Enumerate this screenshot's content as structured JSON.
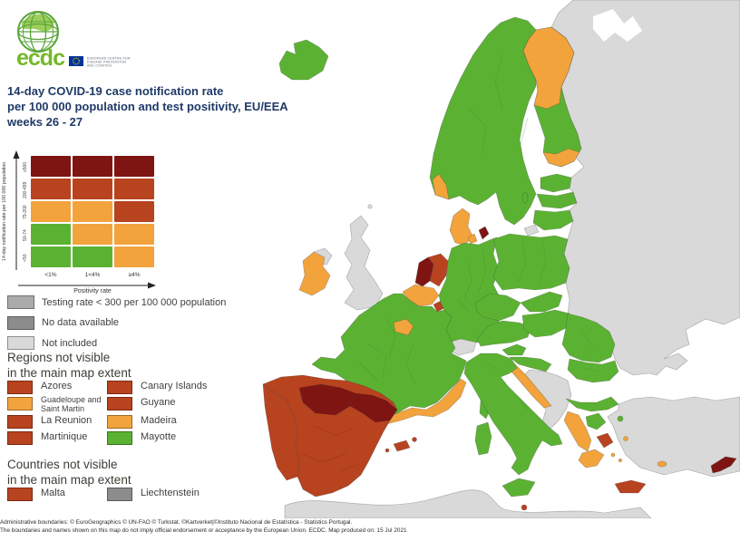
{
  "logo": {
    "ecdc_text": "ecdc",
    "org_line1": "EUROPEAN CENTRE FOR",
    "org_line2": "DISEASE PREVENTION",
    "org_line3": "AND CONTROL"
  },
  "title": {
    "line1": "14-day COVID-19 case notification rate",
    "line2": "per 100 000 population and test positivity, EU/EEA",
    "line3": "weeks 26 - 27"
  },
  "matrix": {
    "y_axis_label": "14-day notification rate per 100 000 population",
    "x_axis_label": "Positivity rate",
    "row_labels": [
      "≥500",
      "200-499",
      "75-200",
      "50-74",
      "<50"
    ],
    "col_labels": [
      "<1%",
      "1<4%",
      "≥4%"
    ],
    "cells": [
      [
        "darkred",
        "darkred",
        "darkred"
      ],
      [
        "red",
        "red",
        "red"
      ],
      [
        "orange",
        "orange",
        "red"
      ],
      [
        "green",
        "orange",
        "orange"
      ],
      [
        "green",
        "green",
        "orange"
      ]
    ]
  },
  "status_legend": [
    {
      "label": "Testing rate < 300 per 100 000 population",
      "color_key": "testing_low"
    },
    {
      "label": "No data available",
      "color_key": "no_data"
    },
    {
      "label": "Not included",
      "color_key": "not_included"
    }
  ],
  "regions_section": {
    "heading_line1": "Regions not visible",
    "heading_line2": "in the main map extent",
    "items": [
      {
        "label": "Azores",
        "color_key": "red"
      },
      {
        "label": "Canary Islands",
        "color_key": "red"
      },
      {
        "label": "Guadeloupe and Saint Martin",
        "color_key": "orange"
      },
      {
        "label": "Guyane",
        "color_key": "red"
      },
      {
        "label": "La Reunion",
        "color_key": "red"
      },
      {
        "label": "Madeira",
        "color_key": "orange"
      },
      {
        "label": "Martinique",
        "color_key": "red"
      },
      {
        "label": "Mayotte",
        "color_key": "green"
      }
    ]
  },
  "countries_section": {
    "heading_line1": "Countries not visible",
    "heading_line2": "in the main map extent",
    "items": [
      {
        "label": "Malta",
        "color_key": "red"
      },
      {
        "label": "Liechtenstein",
        "color_key": "no_data"
      }
    ]
  },
  "footer": {
    "line1": "Administrative boundaries: © EuroGeographics © UN-FAO © Turkstat. ©Kartverket|©Instituto Nacional de Estatística - Statistics Portugal.",
    "line2": "The boundaries and names shown on this map do not imply official endorsement or acceptance by the European Union. ECDC. Map produced on: 15 Jul 2021"
  },
  "colors": {
    "green": "#5BB232",
    "orange": "#F2A33C",
    "red": "#B8431F",
    "darkred": "#7E1512",
    "not_included": "#D9D9D9",
    "testing_low": "#ABABAB",
    "no_data": "#8C8C8C",
    "sea": "#FFFFFF",
    "title": "#1F3A68",
    "logo_green": "#76B82A",
    "eu_blue": "#003399"
  },
  "map": {
    "regions": [
      {
        "id": "russia-belarus-ukraine",
        "status": "not_included"
      },
      {
        "id": "turkey",
        "status": "not_included"
      },
      {
        "id": "north-africa",
        "status": "not_included"
      },
      {
        "id": "western-balkans",
        "status": "not_included"
      },
      {
        "id": "uk",
        "status": "not_included"
      },
      {
        "id": "northern-ireland",
        "status": "not_included"
      },
      {
        "id": "switzerland",
        "status": "not_included"
      },
      {
        "id": "kaliningrad",
        "status": "not_included"
      },
      {
        "id": "white-sea",
        "status": "sea"
      },
      {
        "id": "iceland",
        "status": "green"
      },
      {
        "id": "scandinavia",
        "status": "green"
      },
      {
        "id": "norway-southwest",
        "status": "orange"
      },
      {
        "id": "finland",
        "status": "green"
      },
      {
        "id": "finland-lapland",
        "status": "orange"
      },
      {
        "id": "finland-south-coast",
        "status": "orange"
      },
      {
        "id": "estonia",
        "status": "green"
      },
      {
        "id": "latvia",
        "status": "green"
      },
      {
        "id": "lithuania",
        "status": "green"
      },
      {
        "id": "gotland",
        "status": "green"
      },
      {
        "id": "denmark",
        "status": "orange"
      },
      {
        "id": "copenhagen",
        "status": "darkred"
      },
      {
        "id": "ireland",
        "status": "orange"
      },
      {
        "id": "netherlands",
        "status": "red"
      },
      {
        "id": "netherlands-coast",
        "status": "darkred"
      },
      {
        "id": "belgium",
        "status": "orange"
      },
      {
        "id": "luxembourg",
        "status": "red"
      },
      {
        "id": "germany",
        "status": "green"
      },
      {
        "id": "poland",
        "status": "green"
      },
      {
        "id": "czechia",
        "status": "green"
      },
      {
        "id": "austria",
        "status": "green"
      },
      {
        "id": "slovakia",
        "status": "green"
      },
      {
        "id": "hungary",
        "status": "green"
      },
      {
        "id": "slovenia",
        "status": "green"
      },
      {
        "id": "france",
        "status": "green"
      },
      {
        "id": "paris-region",
        "status": "orange"
      },
      {
        "id": "france-south",
        "status": "orange"
      },
      {
        "id": "corsica",
        "status": "green"
      },
      {
        "id": "portugal",
        "status": "red"
      },
      {
        "id": "spain",
        "status": "red"
      },
      {
        "id": "spain-north-central",
        "status": "darkred"
      },
      {
        "id": "spain-northeast",
        "status": "darkred"
      },
      {
        "id": "balearic-islands",
        "status": "red"
      },
      {
        "id": "italy",
        "status": "green"
      },
      {
        "id": "sicily",
        "status": "green"
      },
      {
        "id": "sardinia",
        "status": "green"
      },
      {
        "id": "malta",
        "status": "red"
      },
      {
        "id": "croatia-inland",
        "status": "green"
      },
      {
        "id": "croatia-coast",
        "status": "orange"
      },
      {
        "id": "romania",
        "status": "green"
      },
      {
        "id": "bulgaria",
        "status": "green"
      },
      {
        "id": "greece-north",
        "status": "green"
      },
      {
        "id": "greece-west",
        "status": "orange"
      },
      {
        "id": "thessaly",
        "status": "green"
      },
      {
        "id": "attica",
        "status": "red"
      },
      {
        "id": "peloponnese",
        "status": "orange"
      },
      {
        "id": "crete",
        "status": "red"
      },
      {
        "id": "lesbos",
        "status": "green"
      },
      {
        "id": "aegean-islands",
        "status": "orange"
      },
      {
        "id": "rhodes",
        "status": "orange"
      },
      {
        "id": "cyprus",
        "status": "darkred"
      }
    ]
  }
}
